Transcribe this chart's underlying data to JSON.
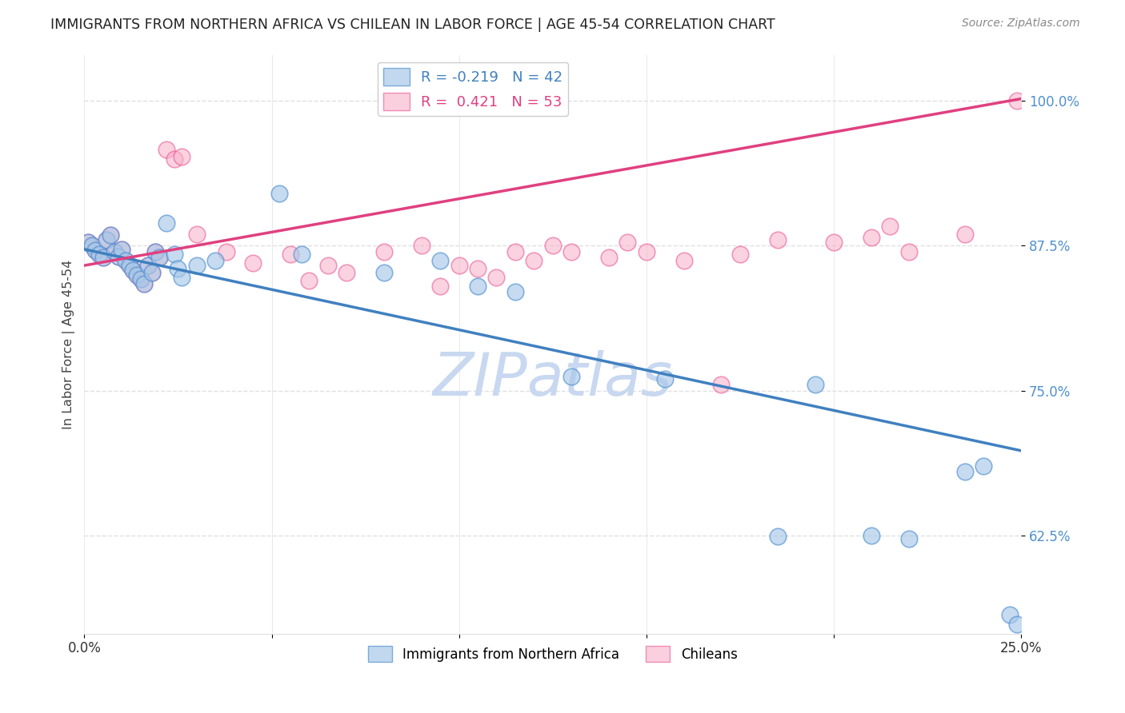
{
  "title": "IMMIGRANTS FROM NORTHERN AFRICA VS CHILEAN IN LABOR FORCE | AGE 45-54 CORRELATION CHART",
  "source": "Source: ZipAtlas.com",
  "ylabel": "In Labor Force | Age 45-54",
  "ytick_labels": [
    "62.5%",
    "75.0%",
    "87.5%",
    "100.0%"
  ],
  "ytick_values": [
    0.625,
    0.75,
    0.875,
    1.0
  ],
  "xlim": [
    0.0,
    0.25
  ],
  "ylim": [
    0.54,
    1.04
  ],
  "legend_blue_R": "-0.219",
  "legend_blue_N": "42",
  "legend_pink_R": "0.421",
  "legend_pink_N": "53",
  "blue_color": "#a8c8e8",
  "pink_color": "#f8b0c8",
  "blue_edge_color": "#5090d0",
  "pink_edge_color": "#e85090",
  "blue_line_color": "#4080c0",
  "pink_line_color": "#e04080",
  "watermark": "ZIPatlas",
  "watermark_color": "#c8d8f0",
  "blue_scatter_x": [
    0.001,
    0.002,
    0.003,
    0.004,
    0.005,
    0.006,
    0.007,
    0.008,
    0.009,
    0.01,
    0.011,
    0.012,
    0.013,
    0.014,
    0.015,
    0.016,
    0.017,
    0.018,
    0.019,
    0.02,
    0.022,
    0.024,
    0.025,
    0.026,
    0.03,
    0.035,
    0.052,
    0.058,
    0.08,
    0.095,
    0.105,
    0.115,
    0.13,
    0.155,
    0.185,
    0.195,
    0.21,
    0.22,
    0.235,
    0.24,
    0.247,
    0.249
  ],
  "blue_scatter_y": [
    0.878,
    0.875,
    0.871,
    0.868,
    0.865,
    0.88,
    0.884,
    0.87,
    0.866,
    0.872,
    0.862,
    0.858,
    0.854,
    0.85,
    0.846,
    0.842,
    0.858,
    0.852,
    0.87,
    0.865,
    0.895,
    0.868,
    0.855,
    0.848,
    0.858,
    0.862,
    0.92,
    0.868,
    0.852,
    0.862,
    0.84,
    0.835,
    0.762,
    0.76,
    0.624,
    0.755,
    0.625,
    0.622,
    0.68,
    0.685,
    0.556,
    0.548
  ],
  "pink_scatter_x": [
    0.001,
    0.002,
    0.003,
    0.004,
    0.005,
    0.006,
    0.007,
    0.008,
    0.009,
    0.01,
    0.011,
    0.012,
    0.013,
    0.014,
    0.015,
    0.016,
    0.017,
    0.018,
    0.019,
    0.02,
    0.022,
    0.024,
    0.026,
    0.03,
    0.038,
    0.045,
    0.055,
    0.06,
    0.065,
    0.07,
    0.08,
    0.09,
    0.095,
    0.1,
    0.105,
    0.11,
    0.115,
    0.12,
    0.125,
    0.13,
    0.14,
    0.145,
    0.15,
    0.16,
    0.17,
    0.175,
    0.185,
    0.2,
    0.21,
    0.215,
    0.22,
    0.235,
    0.249
  ],
  "pink_scatter_y": [
    0.878,
    0.875,
    0.871,
    0.868,
    0.865,
    0.88,
    0.884,
    0.87,
    0.866,
    0.872,
    0.862,
    0.858,
    0.854,
    0.85,
    0.846,
    0.842,
    0.858,
    0.852,
    0.87,
    0.865,
    0.958,
    0.95,
    0.952,
    0.885,
    0.87,
    0.86,
    0.868,
    0.845,
    0.858,
    0.852,
    0.87,
    0.875,
    0.84,
    0.858,
    0.855,
    0.848,
    0.87,
    0.862,
    0.875,
    0.87,
    0.865,
    0.878,
    0.87,
    0.862,
    0.755,
    0.868,
    0.88,
    0.878,
    0.882,
    0.892,
    0.87,
    0.885,
    1.0
  ],
  "grid_color": "#e0e0e0",
  "background_color": "#ffffff",
  "tick_color": "#5090d0"
}
